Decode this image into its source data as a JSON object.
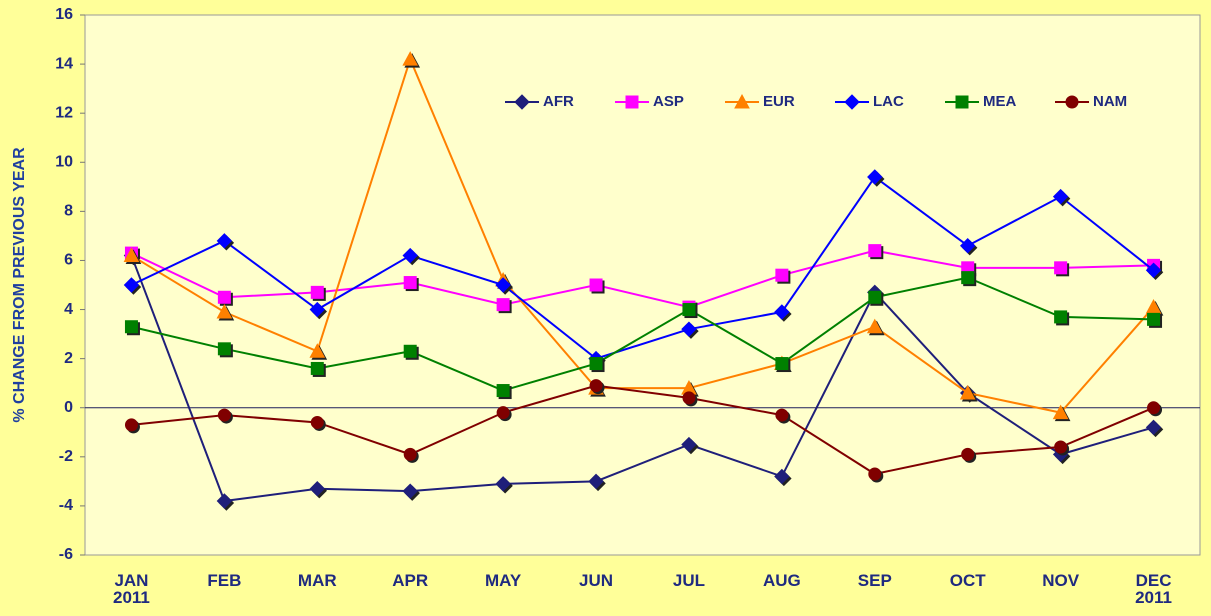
{
  "chart_data": {
    "type": "line",
    "y_label": "% CHANGE FROM PREVIOUS YEAR",
    "categories": [
      "JAN 2011",
      "FEB",
      "MAR",
      "APR",
      "MAY",
      "JUN",
      "JUL",
      "AUG",
      "SEP",
      "OCT",
      "NOV",
      "DEC 2011"
    ],
    "series": [
      {
        "name": "AFR",
        "color": "#1f1f7a",
        "marker": "diamond",
        "values": [
          6.2,
          -3.8,
          -3.3,
          -3.4,
          -3.1,
          -3.0,
          -1.5,
          -2.8,
          4.7,
          0.6,
          -1.9,
          -0.8
        ]
      },
      {
        "name": "ASP",
        "color": "#ff00ff",
        "marker": "square",
        "values": [
          6.3,
          4.5,
          4.7,
          5.1,
          4.2,
          5.0,
          4.1,
          5.4,
          6.4,
          5.7,
          5.7,
          5.8
        ]
      },
      {
        "name": "EUR",
        "color": "#ff8000",
        "marker": "triangle",
        "values": [
          6.2,
          3.9,
          2.3,
          14.2,
          5.2,
          0.8,
          0.8,
          1.8,
          3.3,
          0.6,
          -0.2,
          4.1
        ]
      },
      {
        "name": "LAC",
        "color": "#0000ff",
        "marker": "diamond",
        "values": [
          5.0,
          6.8,
          4.0,
          6.2,
          5.0,
          2.0,
          3.2,
          3.9,
          9.4,
          6.6,
          8.6,
          5.6
        ]
      },
      {
        "name": "MEA",
        "color": "#008000",
        "marker": "square",
        "values": [
          3.3,
          2.4,
          1.6,
          2.3,
          0.7,
          1.8,
          4.0,
          1.8,
          4.5,
          5.3,
          3.7,
          3.6
        ]
      },
      {
        "name": "NAM",
        "color": "#800000",
        "marker": "circle",
        "values": [
          -0.7,
          -0.3,
          -0.6,
          -1.9,
          -0.2,
          0.9,
          0.4,
          -0.3,
          -2.7,
          -1.9,
          -1.6,
          0.0
        ]
      }
    ],
    "ylim": [
      -6,
      16
    ],
    "yticks": [
      -6,
      -4,
      -2,
      0,
      2,
      4,
      6,
      8,
      10,
      12,
      14,
      16
    ],
    "grid": false,
    "legend": "top"
  }
}
